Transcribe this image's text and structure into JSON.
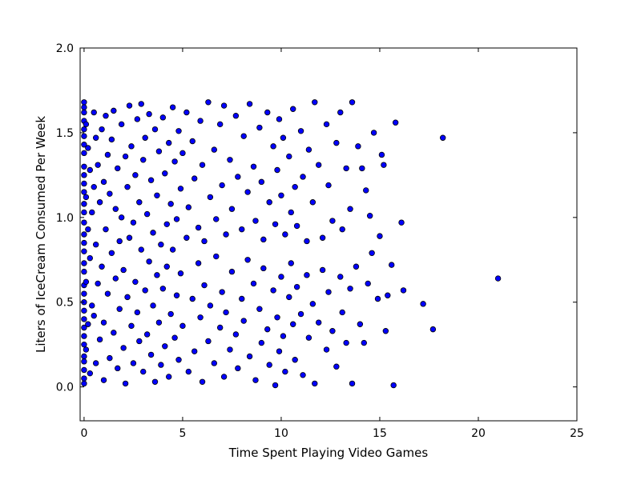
{
  "chart_data": {
    "type": "scatter",
    "title": "",
    "xlabel": "Time Spent Playing Video Games",
    "ylabel": "Liters of IceCream Consumed Per Week",
    "xlim": [
      -0.2,
      25
    ],
    "ylim": [
      -0.2,
      2.0
    ],
    "x_ticks": [
      0,
      5,
      10,
      15,
      20,
      25
    ],
    "y_ticks": [
      0.0,
      0.5,
      1.0,
      1.5,
      2.0
    ],
    "x_tick_labels": [
      "0",
      "5",
      "10",
      "15",
      "20",
      "25"
    ],
    "y_tick_labels": [
      "0.0",
      "0.5",
      "1.0",
      "1.5",
      "2.0"
    ],
    "grid": false,
    "marker_color": "#0000ff",
    "marker_edge_color": "#000000",
    "points": [
      [
        0.0,
        1.68
      ],
      [
        0.0,
        1.65
      ],
      [
        0.0,
        1.62
      ],
      [
        0.0,
        1.57
      ],
      [
        0.0,
        1.52
      ],
      [
        0.0,
        1.48
      ],
      [
        0.0,
        1.43
      ],
      [
        0.0,
        1.38
      ],
      [
        0.0,
        1.3
      ],
      [
        0.0,
        1.25
      ],
      [
        0.0,
        1.2
      ],
      [
        0.0,
        1.15
      ],
      [
        0.0,
        1.08
      ],
      [
        0.0,
        1.03
      ],
      [
        0.0,
        0.97
      ],
      [
        0.0,
        0.9
      ],
      [
        0.0,
        0.85
      ],
      [
        0.0,
        0.8
      ],
      [
        0.0,
        0.73
      ],
      [
        0.0,
        0.68
      ],
      [
        0.0,
        0.6
      ],
      [
        0.0,
        0.55
      ],
      [
        0.0,
        0.5
      ],
      [
        0.0,
        0.45
      ],
      [
        0.0,
        0.4
      ],
      [
        0.0,
        0.35
      ],
      [
        0.0,
        0.3
      ],
      [
        0.0,
        0.25
      ],
      [
        0.0,
        0.18
      ],
      [
        0.0,
        0.15
      ],
      [
        0.0,
        0.1
      ],
      [
        0.0,
        0.05
      ],
      [
        0.0,
        0.02
      ],
      [
        0.1,
        1.55
      ],
      [
        0.1,
        1.12
      ],
      [
        0.1,
        0.62
      ],
      [
        0.1,
        0.22
      ],
      [
        0.2,
        1.41
      ],
      [
        0.2,
        0.93
      ],
      [
        0.2,
        0.37
      ],
      [
        0.3,
        1.28
      ],
      [
        0.3,
        0.76
      ],
      [
        0.3,
        0.08
      ],
      [
        0.4,
        1.03
      ],
      [
        0.4,
        0.48
      ],
      [
        0.5,
        1.62
      ],
      [
        0.5,
        1.18
      ],
      [
        0.5,
        0.42
      ],
      [
        0.6,
        1.47
      ],
      [
        0.6,
        0.84
      ],
      [
        0.6,
        0.14
      ],
      [
        0.7,
        1.31
      ],
      [
        0.7,
        0.61
      ],
      [
        0.8,
        1.09
      ],
      [
        0.8,
        0.28
      ],
      [
        0.9,
        1.52
      ],
      [
        0.9,
        0.71
      ],
      [
        1.0,
        1.21
      ],
      [
        1.0,
        0.38
      ],
      [
        1.0,
        0.04
      ],
      [
        1.1,
        1.6
      ],
      [
        1.1,
        0.93
      ],
      [
        1.2,
        1.37
      ],
      [
        1.2,
        0.55
      ],
      [
        1.3,
        1.14
      ],
      [
        1.3,
        0.17
      ],
      [
        1.4,
        1.46
      ],
      [
        1.4,
        0.79
      ],
      [
        1.5,
        1.63
      ],
      [
        1.5,
        0.32
      ],
      [
        1.6,
        1.05
      ],
      [
        1.6,
        0.64
      ],
      [
        1.7,
        1.29
      ],
      [
        1.7,
        0.11
      ],
      [
        1.8,
        0.86
      ],
      [
        1.8,
        0.46
      ],
      [
        1.9,
        1.55
      ],
      [
        1.9,
        1.0
      ],
      [
        2.0,
        0.23
      ],
      [
        2.0,
        0.69
      ],
      [
        2.1,
        1.36
      ],
      [
        2.1,
        0.02
      ],
      [
        2.2,
        1.18
      ],
      [
        2.2,
        0.53
      ],
      [
        2.3,
        1.66
      ],
      [
        2.3,
        0.88
      ],
      [
        2.4,
        1.42
      ],
      [
        2.4,
        0.36
      ],
      [
        2.5,
        0.97
      ],
      [
        2.5,
        0.14
      ],
      [
        2.6,
        1.25
      ],
      [
        2.6,
        0.62
      ],
      [
        2.7,
        1.58
      ],
      [
        2.7,
        0.44
      ],
      [
        2.8,
        1.09
      ],
      [
        2.8,
        0.27
      ],
      [
        2.9,
        1.67
      ],
      [
        2.9,
        0.81
      ],
      [
        3.0,
        1.34
      ],
      [
        3.0,
        0.09
      ],
      [
        3.1,
        1.47
      ],
      [
        3.1,
        0.57
      ],
      [
        3.2,
        1.02
      ],
      [
        3.2,
        0.31
      ],
      [
        3.3,
        1.61
      ],
      [
        3.3,
        0.74
      ],
      [
        3.4,
        1.22
      ],
      [
        3.4,
        0.19
      ],
      [
        3.5,
        0.91
      ],
      [
        3.5,
        0.48
      ],
      [
        3.6,
        1.52
      ],
      [
        3.6,
        0.03
      ],
      [
        3.7,
        1.13
      ],
      [
        3.7,
        0.66
      ],
      [
        3.8,
        1.39
      ],
      [
        3.8,
        0.38
      ],
      [
        3.9,
        0.84
      ],
      [
        3.9,
        0.13
      ],
      [
        4.0,
        1.59
      ],
      [
        4.0,
        0.58
      ],
      [
        4.1,
        1.26
      ],
      [
        4.1,
        0.24
      ],
      [
        4.2,
        0.96
      ],
      [
        4.2,
        0.71
      ],
      [
        4.3,
        1.44
      ],
      [
        4.3,
        0.06
      ],
      [
        4.4,
        1.08
      ],
      [
        4.4,
        0.43
      ],
      [
        4.5,
        1.65
      ],
      [
        4.5,
        0.81
      ],
      [
        4.6,
        1.33
      ],
      [
        4.6,
        0.29
      ],
      [
        4.7,
        0.99
      ],
      [
        4.7,
        0.54
      ],
      [
        4.8,
        1.51
      ],
      [
        4.8,
        0.16
      ],
      [
        4.9,
        1.17
      ],
      [
        4.9,
        0.67
      ],
      [
        5.0,
        1.38
      ],
      [
        5.0,
        0.36
      ],
      [
        5.2,
        1.62
      ],
      [
        5.2,
        0.88
      ],
      [
        5.3,
        1.06
      ],
      [
        5.3,
        0.09
      ],
      [
        5.5,
        1.45
      ],
      [
        5.5,
        0.52
      ],
      [
        5.6,
        1.23
      ],
      [
        5.6,
        0.21
      ],
      [
        5.8,
        0.94
      ],
      [
        5.8,
        0.73
      ],
      [
        5.9,
        1.57
      ],
      [
        5.9,
        0.41
      ],
      [
        6.0,
        1.31
      ],
      [
        6.0,
        0.03
      ],
      [
        6.1,
        0.86
      ],
      [
        6.1,
        0.6
      ],
      [
        6.3,
        1.68
      ],
      [
        6.3,
        0.27
      ],
      [
        6.4,
        1.12
      ],
      [
        6.4,
        0.48
      ],
      [
        6.6,
        1.4
      ],
      [
        6.6,
        0.14
      ],
      [
        6.7,
        0.99
      ],
      [
        6.7,
        0.77
      ],
      [
        6.9,
        1.55
      ],
      [
        6.9,
        0.35
      ],
      [
        7.0,
        1.19
      ],
      [
        7.0,
        0.56
      ],
      [
        7.1,
        1.66
      ],
      [
        7.1,
        0.06
      ],
      [
        7.2,
        0.9
      ],
      [
        7.2,
        0.44
      ],
      [
        7.4,
        1.34
      ],
      [
        7.4,
        0.22
      ],
      [
        7.5,
        1.05
      ],
      [
        7.5,
        0.68
      ],
      [
        7.7,
        1.6
      ],
      [
        7.7,
        0.31
      ],
      [
        7.8,
        1.24
      ],
      [
        7.8,
        0.11
      ],
      [
        8.0,
        0.93
      ],
      [
        8.0,
        0.52
      ],
      [
        8.1,
        1.48
      ],
      [
        8.1,
        0.39
      ],
      [
        8.3,
        1.15
      ],
      [
        8.3,
        0.75
      ],
      [
        8.4,
        1.67
      ],
      [
        8.4,
        0.18
      ],
      [
        8.6,
        1.3
      ],
      [
        8.6,
        0.61
      ],
      [
        8.7,
        0.98
      ],
      [
        8.7,
        0.04
      ],
      [
        8.9,
        1.53
      ],
      [
        8.9,
        0.46
      ],
      [
        9.0,
        1.21
      ],
      [
        9.0,
        0.26
      ],
      [
        9.1,
        0.87
      ],
      [
        9.1,
        0.7
      ],
      [
        9.3,
        1.62
      ],
      [
        9.3,
        0.34
      ],
      [
        9.4,
        1.09
      ],
      [
        9.4,
        0.13
      ],
      [
        9.6,
        1.42
      ],
      [
        9.6,
        0.57
      ],
      [
        9.7,
        0.96
      ],
      [
        9.7,
        0.01
      ],
      [
        9.8,
        1.28
      ],
      [
        9.8,
        0.41
      ],
      [
        9.9,
        1.58
      ],
      [
        9.9,
        0.21
      ],
      [
        10.0,
        1.13
      ],
      [
        10.0,
        0.65
      ],
      [
        10.1,
        1.47
      ],
      [
        10.1,
        0.3
      ],
      [
        10.2,
        0.9
      ],
      [
        10.2,
        0.09
      ],
      [
        10.4,
        1.36
      ],
      [
        10.4,
        0.53
      ],
      [
        10.5,
        1.03
      ],
      [
        10.5,
        0.73
      ],
      [
        10.6,
        1.64
      ],
      [
        10.6,
        0.37
      ],
      [
        10.7,
        1.18
      ],
      [
        10.7,
        0.16
      ],
      [
        10.8,
        0.95
      ],
      [
        10.8,
        0.59
      ],
      [
        11.0,
        1.51
      ],
      [
        11.0,
        0.43
      ],
      [
        11.1,
        1.24
      ],
      [
        11.1,
        0.07
      ],
      [
        11.3,
        0.86
      ],
      [
        11.3,
        0.66
      ],
      [
        11.4,
        1.4
      ],
      [
        11.4,
        0.29
      ],
      [
        11.6,
        1.09
      ],
      [
        11.6,
        0.49
      ],
      [
        11.7,
        1.68
      ],
      [
        11.7,
        0.02
      ],
      [
        11.9,
        1.31
      ],
      [
        11.9,
        0.38
      ],
      [
        12.1,
        0.88
      ],
      [
        12.1,
        0.69
      ],
      [
        12.3,
        1.55
      ],
      [
        12.3,
        0.22
      ],
      [
        12.4,
        1.19
      ],
      [
        12.4,
        0.56
      ],
      [
        12.6,
        0.98
      ],
      [
        12.6,
        0.33
      ],
      [
        12.8,
        1.44
      ],
      [
        12.8,
        0.12
      ],
      [
        13.0,
        1.62
      ],
      [
        13.0,
        0.65
      ],
      [
        13.1,
        0.93
      ],
      [
        13.1,
        0.44
      ],
      [
        13.3,
        1.29
      ],
      [
        13.3,
        0.26
      ],
      [
        13.5,
        1.05
      ],
      [
        13.5,
        0.58
      ],
      [
        13.6,
        1.68
      ],
      [
        13.6,
        0.02
      ],
      [
        13.8,
        0.71
      ],
      [
        13.9,
        1.42
      ],
      [
        14.0,
        0.37
      ],
      [
        14.1,
        1.29
      ],
      [
        14.2,
        0.26
      ],
      [
        14.3,
        1.16
      ],
      [
        14.4,
        0.61
      ],
      [
        14.5,
        1.01
      ],
      [
        14.6,
        0.79
      ],
      [
        14.7,
        1.5
      ],
      [
        14.9,
        0.52
      ],
      [
        15.0,
        0.89
      ],
      [
        15.1,
        1.37
      ],
      [
        15.2,
        1.31
      ],
      [
        15.3,
        0.33
      ],
      [
        15.4,
        0.54
      ],
      [
        15.6,
        0.72
      ],
      [
        15.7,
        0.01
      ],
      [
        15.8,
        1.56
      ],
      [
        16.1,
        0.97
      ],
      [
        16.2,
        0.57
      ],
      [
        17.2,
        0.49
      ],
      [
        17.7,
        0.34
      ],
      [
        18.2,
        1.47
      ],
      [
        21.0,
        0.64
      ]
    ]
  }
}
